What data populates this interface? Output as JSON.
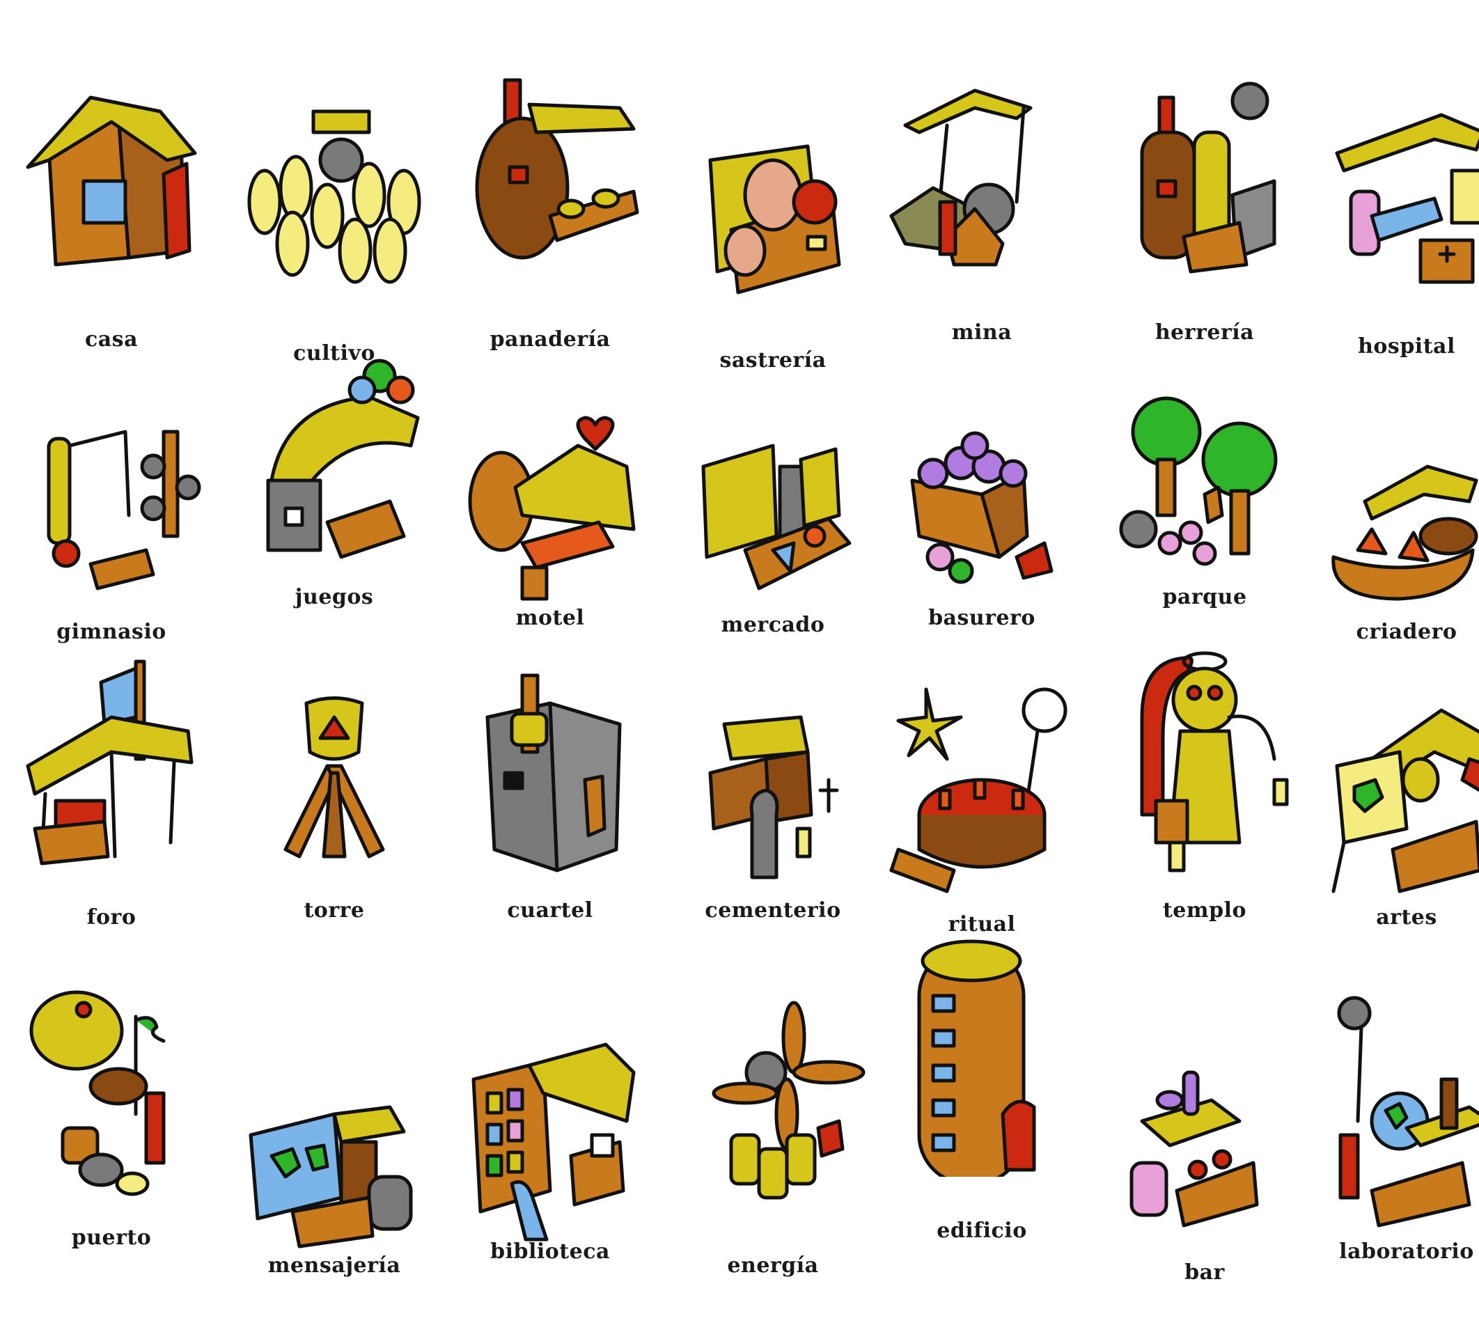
{
  "palette": {
    "yellow": "#d6c51a",
    "brown": "#c97a1c",
    "dark_brown": "#8a4a12",
    "red": "#cc2a10",
    "gray": "#7a7a7a",
    "light_yellow": "#f4ec7e",
    "green": "#2fb52a",
    "blue": "#7ab4e8",
    "purple": "#b17ce0",
    "orange": "#e55a1c",
    "pink": "#e8a0d8"
  },
  "buildings": [
    {
      "label": "casa",
      "icon": "house-icon"
    },
    {
      "label": "cultivo",
      "icon": "crop-field-icon"
    },
    {
      "label": "panadería",
      "icon": "bakery-icon"
    },
    {
      "label": "sastrería",
      "icon": "tailor-shop-icon"
    },
    {
      "label": "mina",
      "icon": "mine-icon"
    },
    {
      "label": "herrería",
      "icon": "forge-icon"
    },
    {
      "label": "hospital",
      "icon": "hospital-icon"
    },
    {
      "label": "gimnasio",
      "icon": "gym-icon"
    },
    {
      "label": "juegos",
      "icon": "games-icon"
    },
    {
      "label": "motel",
      "icon": "motel-icon"
    },
    {
      "label": "mercado",
      "icon": "market-icon"
    },
    {
      "label": "basurero",
      "icon": "dump-icon"
    },
    {
      "label": "parque",
      "icon": "park-icon"
    },
    {
      "label": "criadero",
      "icon": "breeding-pen-icon"
    },
    {
      "label": "foro",
      "icon": "forum-icon"
    },
    {
      "label": "torre",
      "icon": "tower-icon"
    },
    {
      "label": "cuartel",
      "icon": "barracks-icon"
    },
    {
      "label": "cementerio",
      "icon": "cemetery-icon"
    },
    {
      "label": "ritual",
      "icon": "ritual-icon"
    },
    {
      "label": "templo",
      "icon": "temple-icon"
    },
    {
      "label": "artes",
      "icon": "arts-icon"
    },
    {
      "label": "puerto",
      "icon": "port-icon"
    },
    {
      "label": "mensajería",
      "icon": "messaging-icon"
    },
    {
      "label": "biblioteca",
      "icon": "library-icon"
    },
    {
      "label": "energía",
      "icon": "energy-icon"
    },
    {
      "label": "edificio",
      "icon": "building-icon"
    },
    {
      "label": "bar",
      "icon": "bar-icon"
    },
    {
      "label": "laboratorio",
      "icon": "laboratory-icon"
    }
  ]
}
